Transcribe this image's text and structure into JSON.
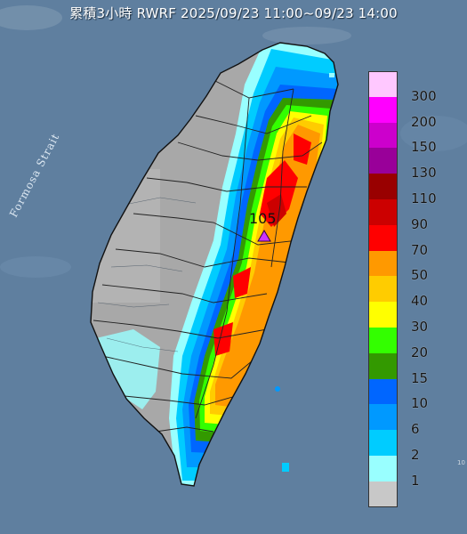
{
  "title": "累積3小時 RWRF 2025/09/23 11:00~09/23 14:00",
  "strait_label": "Formosa Strait",
  "max_station": {
    "value": "105",
    "marker": "triangle-marker-icon"
  },
  "corner_text": "10",
  "legend": [
    {
      "label": "300",
      "color": "#ffc8ff"
    },
    {
      "label": "200",
      "color": "#ff00ff"
    },
    {
      "label": "150",
      "color": "#cc00cc"
    },
    {
      "label": "130",
      "color": "#990099"
    },
    {
      "label": "110",
      "color": "#990000"
    },
    {
      "label": "90",
      "color": "#cc0000"
    },
    {
      "label": "70",
      "color": "#ff0000"
    },
    {
      "label": "50",
      "color": "#ff9900"
    },
    {
      "label": "40",
      "color": "#ffcc00"
    },
    {
      "label": "30",
      "color": "#ffff00"
    },
    {
      "label": "20",
      "color": "#33ff00"
    },
    {
      "label": "15",
      "color": "#339900"
    },
    {
      "label": "10",
      "color": "#0066ff"
    },
    {
      "label": "6",
      "color": "#0099ff"
    },
    {
      "label": "2",
      "color": "#00ccff"
    },
    {
      "label": "1",
      "color": "#99ffff"
    },
    {
      "label": "",
      "color": "#c8c8c8"
    }
  ],
  "colors": {
    "sea": "#5f7f9f",
    "land": "#a8a8a8",
    "border": "#222222"
  }
}
